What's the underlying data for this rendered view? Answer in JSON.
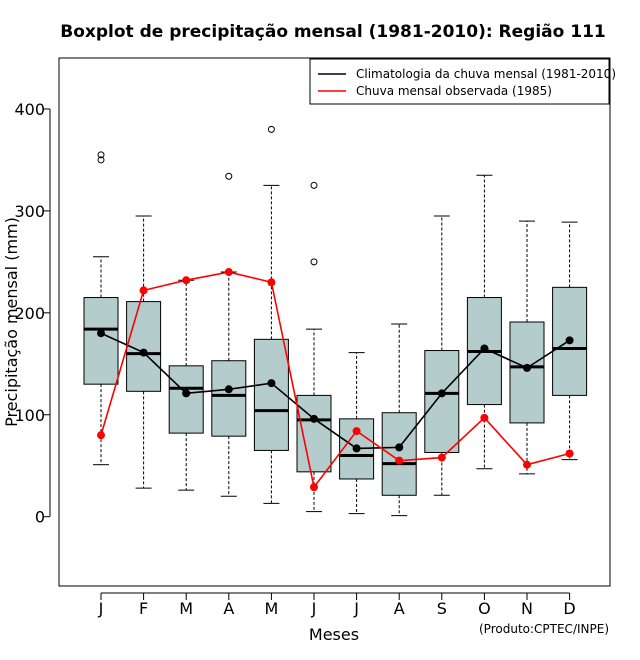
{
  "chart_data": {
    "type": "boxplot",
    "title": "Boxplot de precipitação mensal (1981-2010): Região 111",
    "xlabel": "Meses",
    "ylabel": "Precipitação mensal (mm)",
    "credit": "(Produto:CPTEC/INPE)",
    "ylim": [
      -68,
      450
    ],
    "yticks": [
      0,
      100,
      200,
      300,
      400
    ],
    "categories": [
      "J",
      "F",
      "M",
      "A",
      "M",
      "J",
      "J",
      "A",
      "S",
      "O",
      "N",
      "D"
    ],
    "boxes": [
      {
        "whisker_low": 51,
        "q1": 130,
        "median": 184,
        "q3": 215,
        "whisker_high": 255,
        "outliers": [
          350,
          355
        ]
      },
      {
        "whisker_low": 28,
        "q1": 123,
        "median": 160,
        "q3": 211,
        "whisker_high": 295,
        "outliers": []
      },
      {
        "whisker_low": 26,
        "q1": 82,
        "median": 126,
        "q3": 148,
        "whisker_high": 232,
        "outliers": []
      },
      {
        "whisker_low": 20,
        "q1": 79,
        "median": 119,
        "q3": 153,
        "whisker_high": 240,
        "outliers": [
          334
        ]
      },
      {
        "whisker_low": 13,
        "q1": 65,
        "median": 104,
        "q3": 174,
        "whisker_high": 325,
        "outliers": [
          380
        ]
      },
      {
        "whisker_low": 5,
        "q1": 44,
        "median": 95,
        "q3": 119,
        "whisker_high": 184,
        "outliers": [
          250,
          325
        ]
      },
      {
        "whisker_low": 3,
        "q1": 37,
        "median": 60,
        "q3": 96,
        "whisker_high": 161,
        "outliers": []
      },
      {
        "whisker_low": 1,
        "q1": 21,
        "median": 52,
        "q3": 102,
        "whisker_high": 189,
        "outliers": []
      },
      {
        "whisker_low": 21,
        "q1": 63,
        "median": 121,
        "q3": 163,
        "whisker_high": 295,
        "outliers": []
      },
      {
        "whisker_low": 47,
        "q1": 110,
        "median": 162,
        "q3": 215,
        "whisker_high": 335,
        "outliers": []
      },
      {
        "whisker_low": 42,
        "q1": 92,
        "median": 147,
        "q3": 191,
        "whisker_high": 290,
        "outliers": []
      },
      {
        "whisker_low": 56,
        "q1": 119,
        "median": 165,
        "q3": 225,
        "whisker_high": 289,
        "outliers": []
      }
    ],
    "series": [
      {
        "name": "Climatologia da chuva mensal (1981-2010)",
        "color": "#000000",
        "values": [
          180,
          161,
          121,
          125,
          131,
          96,
          67,
          68,
          121,
          165,
          146,
          173
        ]
      },
      {
        "name": "Chuva mensal observada (1985)",
        "color": "#ff0000",
        "values": [
          80,
          222,
          232,
          240,
          230,
          29,
          84,
          55,
          58,
          97,
          51,
          62
        ]
      }
    ],
    "legend_position": "top-right",
    "box_fill": "#b4cccc"
  }
}
